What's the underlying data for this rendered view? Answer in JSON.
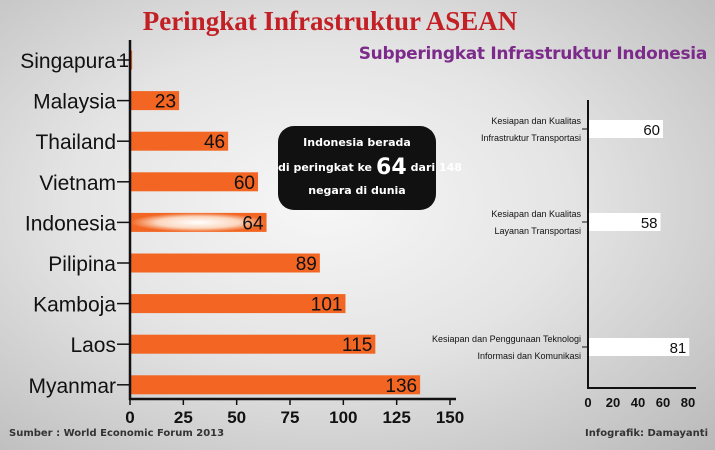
{
  "header": {
    "title": "Peringkat Infrastruktur ASEAN",
    "subtitle": "Subperingkat Infrastruktur Indonesia"
  },
  "callout": {
    "line1": "Indonesia berada",
    "line2_pre": "di peringkat ke",
    "rank": "64",
    "line2_post": "dari 148",
    "line3": "negara di dunia"
  },
  "footer": {
    "source": "Sumber : World Economic Forum 2013",
    "credit": "Infografik: Damayanti"
  },
  "colors": {
    "bar": "#f26522",
    "title": "#c32026",
    "subtitle": "#7d2b8b",
    "subbar": "#ffffff"
  },
  "chart_data": [
    {
      "type": "bar",
      "orientation": "horizontal",
      "categories": [
        "Singapura",
        "Malaysia",
        "Thailand",
        "Vietnam",
        "Indonesia",
        "Pilipina",
        "Kamboja",
        "Laos",
        "Myanmar"
      ],
      "values": [
        1,
        23,
        46,
        60,
        64,
        89,
        101,
        115,
        136
      ],
      "value_labels": [
        "1",
        "23",
        "46",
        "60",
        "64",
        "89",
        "101",
        "115",
        "136"
      ],
      "xlim": [
        0,
        150
      ],
      "xticks": [
        0,
        25,
        50,
        75,
        100,
        125,
        150
      ],
      "highlight": "Indonesia"
    },
    {
      "type": "bar",
      "orientation": "horizontal",
      "categories": [
        [
          "Kesiapan dan Kualitas",
          "Infrastruktur Transportasi"
        ],
        [
          "Kesiapan dan Kualitas",
          "Layanan Transportasi"
        ],
        [
          "Kesiapan dan Penggunaan Teknologi",
          "Informasi dan Komunikasi"
        ]
      ],
      "values": [
        60,
        58,
        81
      ],
      "value_labels": [
        "60",
        "58",
        "81"
      ],
      "xlim": [
        0,
        80
      ],
      "xticks": [
        0,
        20,
        40,
        60,
        80
      ]
    }
  ]
}
